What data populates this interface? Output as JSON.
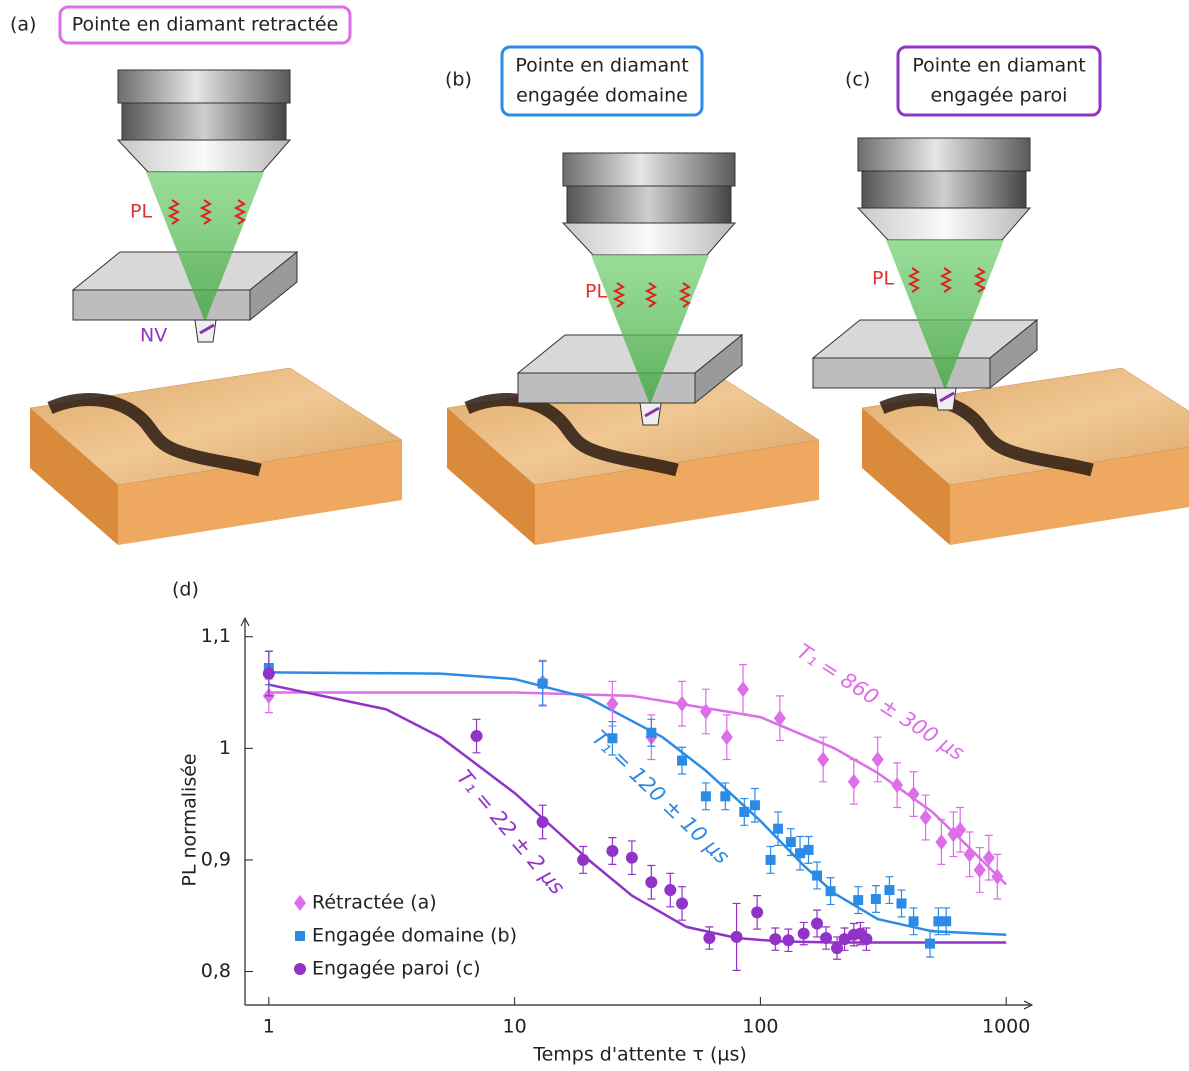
{
  "panels": [
    {
      "tag": "(a)",
      "lines": [
        "Pointe en diamant retractée"
      ],
      "pl": "PL",
      "nv": "NV"
    },
    {
      "tag": "(b)",
      "lines": [
        "Pointe en diamant",
        "engagée domaine"
      ],
      "pl": "PL"
    },
    {
      "tag": "(c)",
      "lines": [
        "Pointe en diamant",
        "engagée paroi"
      ],
      "pl": "PL"
    }
  ],
  "chart_data": {
    "type": "scatter",
    "title": "(d)",
    "x_label": "Temps d'attente τ (µs)",
    "y_label": "PL normalisée",
    "log_x": true,
    "xlim": [
      0.8,
      1250
    ],
    "xticks": [
      1,
      10,
      100,
      1000
    ],
    "ylim": [
      0.77,
      1.115
    ],
    "yticks": [
      {
        "value": 0.8,
        "label": "0,8"
      },
      {
        "value": 0.9,
        "label": "0,9"
      },
      1,
      {
        "value": 1.1,
        "label": "1,1"
      }
    ],
    "legend": "lower left",
    "series": [
      {
        "name": "Rétractée (a)",
        "color": "#dd6ee8",
        "marker": "diamond",
        "x": [
          1,
          13,
          25,
          36,
          48,
          60,
          73,
          85,
          120,
          180,
          240,
          300,
          360,
          420,
          470,
          545,
          610,
          650,
          710,
          780,
          850,
          920
        ],
        "values": [
          1.047,
          1.059,
          1.04,
          1.01,
          1.04,
          1.033,
          1.01,
          1.053,
          1.027,
          0.99,
          0.97,
          0.99,
          0.967,
          0.959,
          0.938,
          0.916,
          0.923,
          0.927,
          0.905,
          0.891,
          0.902,
          0.885
        ],
        "errors": [
          0.015,
          0.02,
          0.02,
          0.02,
          0.02,
          0.02,
          0.02,
          0.022,
          0.02,
          0.02,
          0.02,
          0.02,
          0.02,
          0.02,
          0.02,
          0.02,
          0.02,
          0.02,
          0.02,
          0.02,
          0.02,
          0.02
        ]
      },
      {
        "name": "Engagée domaine (b)",
        "color": "#2b8be6",
        "marker": "square",
        "x": [
          1,
          13,
          25,
          36,
          48,
          60,
          72,
          86,
          95,
          110,
          118,
          133,
          145,
          157,
          170,
          193,
          250,
          295,
          335,
          375,
          420,
          490,
          530,
          570
        ],
        "values": [
          1.072,
          1.058,
          1.009,
          1.014,
          0.989,
          0.957,
          0.957,
          0.943,
          0.949,
          0.9,
          0.928,
          0.916,
          0.906,
          0.909,
          0.886,
          0.872,
          0.864,
          0.865,
          0.873,
          0.861,
          0.845,
          0.825,
          0.845,
          0.845
        ],
        "errors": [
          0.015,
          0.02,
          0.015,
          0.012,
          0.012,
          0.012,
          0.012,
          0.012,
          0.015,
          0.012,
          0.015,
          0.012,
          0.015,
          0.012,
          0.012,
          0.012,
          0.012,
          0.012,
          0.012,
          0.012,
          0.012,
          0.012,
          0.012,
          0.012
        ]
      },
      {
        "name": "Engagée paroi (c)",
        "color": "#9233c7",
        "marker": "circle",
        "x": [
          1,
          7,
          13,
          19,
          25,
          30,
          36,
          43,
          48,
          62,
          80,
          97,
          115,
          130,
          150,
          170,
          185,
          205,
          220,
          240,
          255,
          270
        ],
        "values": [
          1.067,
          1.011,
          0.934,
          0.9,
          0.908,
          0.902,
          0.88,
          0.873,
          0.861,
          0.83,
          0.831,
          0.853,
          0.829,
          0.828,
          0.834,
          0.843,
          0.83,
          0.821,
          0.829,
          0.833,
          0.834,
          0.829
        ],
        "errors": [
          0.02,
          0.015,
          0.015,
          0.012,
          0.012,
          0.015,
          0.015,
          0.015,
          0.015,
          0.01,
          0.03,
          0.015,
          0.01,
          0.01,
          0.01,
          0.012,
          0.01,
          0.01,
          0.01,
          0.01,
          0.01,
          0.01
        ]
      }
    ],
    "fits": [
      {
        "color": "#dd6ee8",
        "x": [
          1,
          10,
          30,
          100,
          200,
          300,
          500,
          700,
          1000
        ],
        "values": [
          1.05,
          1.05,
          1.047,
          1.028,
          1.0,
          0.978,
          0.943,
          0.912,
          0.878
        ]
      },
      {
        "color": "#2b8be6",
        "x": [
          1,
          5,
          10,
          20,
          40,
          60,
          100,
          150,
          200,
          300,
          500,
          1000
        ],
        "values": [
          1.068,
          1.067,
          1.062,
          1.045,
          1.01,
          0.98,
          0.935,
          0.895,
          0.87,
          0.847,
          0.836,
          0.833
        ]
      },
      {
        "color": "#9233c7",
        "x": [
          1,
          3,
          5,
          10,
          15,
          20,
          30,
          50,
          80,
          120,
          200,
          1000
        ],
        "values": [
          1.057,
          1.035,
          1.01,
          0.96,
          0.925,
          0.9,
          0.868,
          0.84,
          0.83,
          0.827,
          0.826,
          0.826
        ]
      }
    ],
    "annotations": [
      {
        "text": "T₁ = 860 ± 300 µs",
        "color": "#dd6ee8"
      },
      {
        "text": "T₁ = 120 ± 10 µs",
        "color": "#2b8be6"
      },
      {
        "text": "T₁ = 22 ± 2 µs",
        "color": "#9233c7"
      }
    ]
  }
}
